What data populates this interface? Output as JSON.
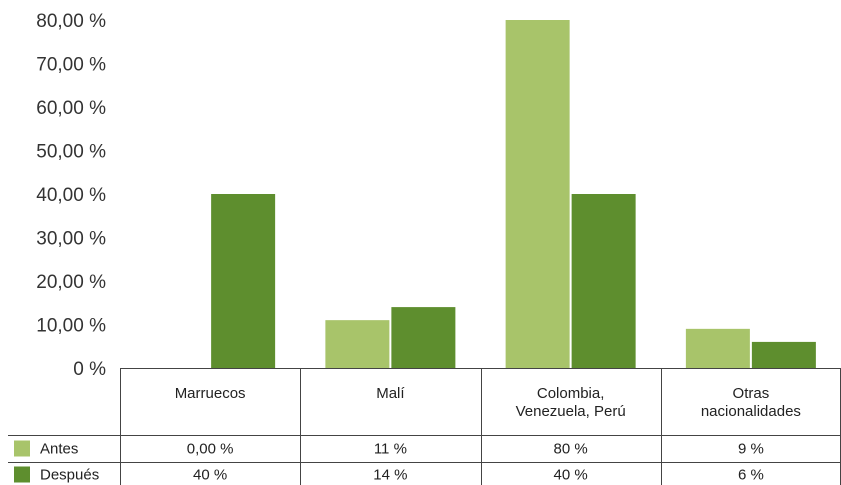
{
  "chart_data": {
    "type": "bar",
    "categories": [
      [
        "Marruecos"
      ],
      [
        "Malí"
      ],
      [
        "Colombia,",
        "Venezuela, Perú"
      ],
      [
        "Otras",
        "nacionalidades"
      ]
    ],
    "series": [
      {
        "name": "Antes",
        "values": [
          0,
          11,
          80,
          9
        ],
        "labels": [
          "0,00 %",
          "11 %",
          "80 %",
          "9 %"
        ],
        "color": "#a8c46a"
      },
      {
        "name": "Después",
        "values": [
          40,
          14,
          40,
          6
        ],
        "labels": [
          "40 %",
          "14 %",
          "40 %",
          "6 %"
        ],
        "color": "#5e8e2e"
      }
    ],
    "yticks": [
      "0 %",
      "10,00 %",
      "20,00 %",
      "30,00 %",
      "40,00 %",
      "50,00 %",
      "60,00 %",
      "70,00 %",
      "80,00 %"
    ],
    "ylim": [
      0,
      80
    ],
    "legend": "table-rows",
    "grid": false
  }
}
